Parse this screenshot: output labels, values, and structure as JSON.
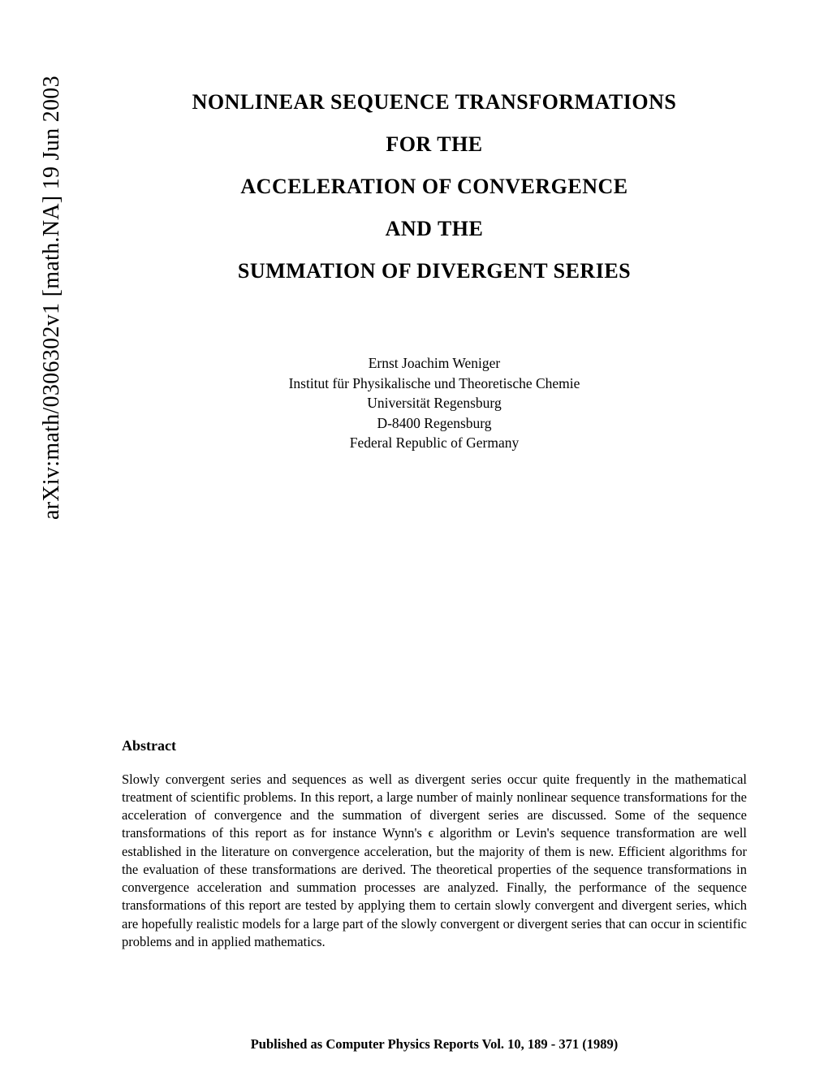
{
  "arxiv": "arXiv:math/0306302v1 [math.NA] 19 Jun 2003",
  "title_line1": "NONLINEAR SEQUENCE TRANSFORMATIONS",
  "title_line2": "FOR THE",
  "title_line3": "ACCELERATION OF CONVERGENCE",
  "title_line4": "AND THE",
  "title_line5": "SUMMATION OF DIVERGENT SERIES",
  "author": "Ernst Joachim Weniger",
  "affiliation1": "Institut für Physikalische und Theoretische Chemie",
  "affiliation2": "Universität Regensburg",
  "affiliation3": "D-8400 Regensburg",
  "affiliation4": "Federal Republic of Germany",
  "abstract_heading": "Abstract",
  "abstract_body": "Slowly convergent series and sequences as well as divergent series occur quite frequently in the mathematical treatment of scientific problems. In this report, a large number of mainly nonlinear sequence transformations for the acceleration of convergence and the summation of divergent series are discussed. Some of the sequence transformations of this report as for instance Wynn's ϵ algorithm or Levin's sequence transformation are well established in the literature on convergence acceleration, but the majority of them is new. Efficient algorithms for the evaluation of these transformations are derived. The theoretical properties of the sequence transformations in convergence acceleration and summation processes are analyzed. Finally, the performance of the sequence transformations of this report are tested by applying them to certain slowly convergent and divergent series, which are hopefully realistic models for a large part of the slowly convergent or divergent series that can occur in scientific problems and in applied mathematics.",
  "footer": "Published as Computer Physics Reports Vol. 10, 189 - 371 (1989)"
}
